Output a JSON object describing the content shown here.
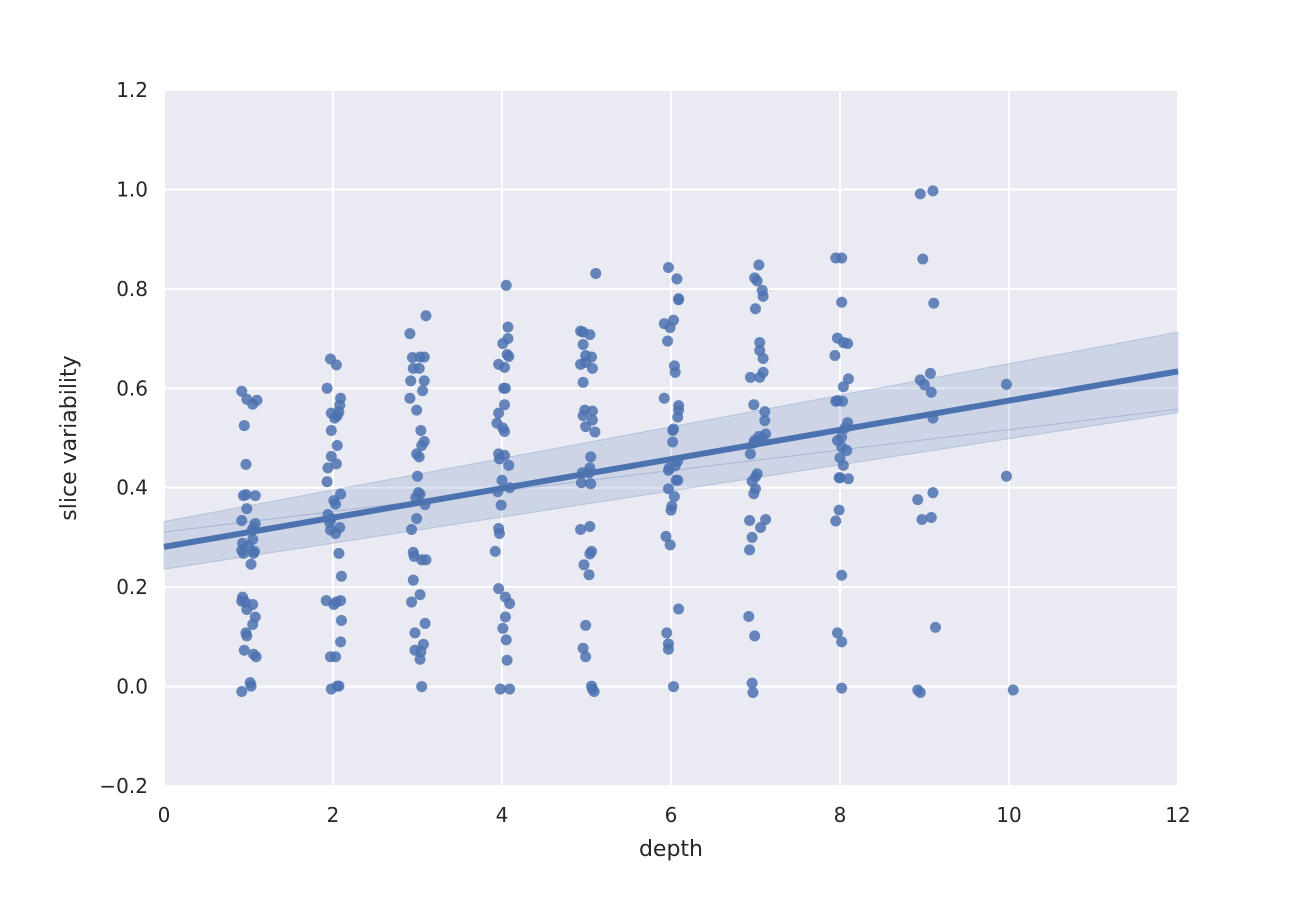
{
  "chart_data": {
    "type": "scatter",
    "title": "",
    "xlabel": "depth",
    "ylabel": "slice variability",
    "xlim": [
      0,
      12
    ],
    "ylim": [
      -0.2,
      1.2
    ],
    "xticks": [
      "0",
      "2",
      "4",
      "6",
      "8",
      "10",
      "12"
    ],
    "yticks": [
      "−0.2",
      "0.0",
      "0.2",
      "0.4",
      "0.6",
      "0.8",
      "1.0",
      "1.2"
    ],
    "grid": true,
    "style": "seaborn-darkgrid",
    "colors": {
      "background": "#eaeaf2",
      "grid": "#ffffff",
      "point": "#4c72b0",
      "line": "#4c72b0",
      "band": "#4c72b0"
    },
    "regression": {
      "x": [
        0,
        12
      ],
      "y": [
        0.281,
        0.634
      ],
      "ci_lower": [
        0.236,
        0.551
      ],
      "ci_mid": [
        0.311,
        0.558
      ],
      "ci_upper": [
        0.332,
        0.713
      ]
    },
    "series": [
      {
        "points": [
          [
            0.92,
            0.594
          ],
          [
            0.98,
            0.578
          ],
          [
            1.05,
            0.568
          ],
          [
            1.1,
            0.576
          ],
          [
            0.95,
            0.525
          ],
          [
            0.97,
            0.447
          ],
          [
            0.94,
            0.384
          ],
          [
            0.97,
            0.386
          ],
          [
            1.08,
            0.384
          ],
          [
            0.98,
            0.358
          ],
          [
            0.92,
            0.334
          ],
          [
            1.08,
            0.328
          ],
          [
            1.06,
            0.32
          ],
          [
            1.04,
            0.314
          ],
          [
            0.93,
            0.288
          ],
          [
            1.0,
            0.283
          ],
          [
            1.05,
            0.296
          ],
          [
            0.92,
            0.274
          ],
          [
            0.94,
            0.268
          ],
          [
            1.07,
            0.272
          ],
          [
            1.06,
            0.268
          ],
          [
            1.03,
            0.246
          ],
          [
            0.93,
            0.18
          ],
          [
            0.92,
            0.172
          ],
          [
            0.96,
            0.17
          ],
          [
            1.05,
            0.165
          ],
          [
            0.98,
            0.155
          ],
          [
            1.08,
            0.14
          ],
          [
            1.05,
            0.125
          ],
          [
            0.97,
            0.108
          ],
          [
            0.98,
            0.102
          ],
          [
            0.95,
            0.073
          ],
          [
            1.06,
            0.065
          ],
          [
            1.09,
            0.06
          ],
          [
            1.02,
            0.008
          ],
          [
            0.92,
            -0.01
          ],
          [
            1.03,
            0.001
          ],
          [
            1.97,
            0.659
          ],
          [
            2.04,
            0.647
          ],
          [
            1.93,
            0.6
          ],
          [
            2.09,
            0.58
          ],
          [
            2.08,
            0.566
          ],
          [
            2.07,
            0.552
          ],
          [
            1.98,
            0.55
          ],
          [
            2.05,
            0.545
          ],
          [
            2.02,
            0.54
          ],
          [
            1.98,
            0.515
          ],
          [
            2.05,
            0.485
          ],
          [
            1.98,
            0.463
          ],
          [
            2.04,
            0.448
          ],
          [
            1.94,
            0.44
          ],
          [
            1.93,
            0.412
          ],
          [
            2.09,
            0.387
          ],
          [
            2.01,
            0.374
          ],
          [
            2.03,
            0.367
          ],
          [
            1.94,
            0.346
          ],
          [
            1.98,
            0.338
          ],
          [
            1.96,
            0.33
          ],
          [
            2.08,
            0.32
          ],
          [
            1.97,
            0.315
          ],
          [
            2.03,
            0.308
          ],
          [
            2.07,
            0.268
          ],
          [
            2.1,
            0.222
          ],
          [
            1.92,
            0.173
          ],
          [
            2.04,
            0.17
          ],
          [
            2.01,
            0.165
          ],
          [
            2.09,
            0.173
          ],
          [
            2.1,
            0.133
          ],
          [
            2.09,
            0.09
          ],
          [
            1.97,
            0.06
          ],
          [
            2.03,
            0.06
          ],
          [
            1.98,
            -0.005
          ],
          [
            2.05,
            0.001
          ],
          [
            2.07,
            0.001
          ],
          [
            2.91,
            0.71
          ],
          [
            3.1,
            0.746
          ],
          [
            2.94,
            0.662
          ],
          [
            3.03,
            0.663
          ],
          [
            3.08,
            0.663
          ],
          [
            2.95,
            0.64
          ],
          [
            3.02,
            0.64
          ],
          [
            2.92,
            0.615
          ],
          [
            3.08,
            0.615
          ],
          [
            3.06,
            0.595
          ],
          [
            2.91,
            0.58
          ],
          [
            2.99,
            0.556
          ],
          [
            3.04,
            0.515
          ],
          [
            3.08,
            0.493
          ],
          [
            3.05,
            0.485
          ],
          [
            2.99,
            0.468
          ],
          [
            3.02,
            0.462
          ],
          [
            3.0,
            0.423
          ],
          [
            3.01,
            0.39
          ],
          [
            3.03,
            0.387
          ],
          [
            2.98,
            0.38
          ],
          [
            3.09,
            0.366
          ],
          [
            2.93,
            0.316
          ],
          [
            2.99,
            0.338
          ],
          [
            2.95,
            0.27
          ],
          [
            2.96,
            0.262
          ],
          [
            3.05,
            0.255
          ],
          [
            3.1,
            0.255
          ],
          [
            2.95,
            0.214
          ],
          [
            3.03,
            0.185
          ],
          [
            2.93,
            0.17
          ],
          [
            2.97,
            0.108
          ],
          [
            3.09,
            0.127
          ],
          [
            3.07,
            0.085
          ],
          [
            2.97,
            0.073
          ],
          [
            3.04,
            0.07
          ],
          [
            3.03,
            0.055
          ],
          [
            3.05,
            0.0
          ],
          [
            4.05,
            0.807
          ],
          [
            4.07,
            0.723
          ],
          [
            4.07,
            0.7
          ],
          [
            4.01,
            0.69
          ],
          [
            4.06,
            0.668
          ],
          [
            4.08,
            0.664
          ],
          [
            3.96,
            0.648
          ],
          [
            4.03,
            0.642
          ],
          [
            4.02,
            0.6
          ],
          [
            4.04,
            0.6
          ],
          [
            4.03,
            0.567
          ],
          [
            3.96,
            0.55
          ],
          [
            3.94,
            0.53
          ],
          [
            4.01,
            0.52
          ],
          [
            4.03,
            0.513
          ],
          [
            3.96,
            0.468
          ],
          [
            4.03,
            0.465
          ],
          [
            3.97,
            0.458
          ],
          [
            4.08,
            0.445
          ],
          [
            4.0,
            0.415
          ],
          [
            4.09,
            0.4
          ],
          [
            3.95,
            0.392
          ],
          [
            3.99,
            0.365
          ],
          [
            3.96,
            0.318
          ],
          [
            3.97,
            0.308
          ],
          [
            3.92,
            0.272
          ],
          [
            3.96,
            0.197
          ],
          [
            4.04,
            0.18
          ],
          [
            4.09,
            0.167
          ],
          [
            4.04,
            0.14
          ],
          [
            4.01,
            0.117
          ],
          [
            4.05,
            0.094
          ],
          [
            4.06,
            0.053
          ],
          [
            3.98,
            -0.005
          ],
          [
            4.09,
            -0.005
          ],
          [
            4.93,
            0.715
          ],
          [
            4.96,
            0.713
          ],
          [
            5.04,
            0.708
          ],
          [
            4.96,
            0.688
          ],
          [
            4.99,
            0.666
          ],
          [
            5.06,
            0.663
          ],
          [
            4.93,
            0.648
          ],
          [
            4.99,
            0.652
          ],
          [
            5.07,
            0.64
          ],
          [
            4.96,
            0.612
          ],
          [
            4.98,
            0.556
          ],
          [
            5.07,
            0.554
          ],
          [
            4.96,
            0.545
          ],
          [
            5.07,
            0.536
          ],
          [
            4.99,
            0.523
          ],
          [
            5.1,
            0.512
          ],
          [
            5.05,
            0.462
          ],
          [
            5.04,
            0.44
          ],
          [
            5.03,
            0.43
          ],
          [
            4.95,
            0.43
          ],
          [
            4.94,
            0.41
          ],
          [
            5.05,
            0.408
          ],
          [
            4.93,
            0.316
          ],
          [
            5.04,
            0.322
          ],
          [
            5.06,
            0.272
          ],
          [
            5.04,
            0.267
          ],
          [
            4.97,
            0.245
          ],
          [
            5.03,
            0.225
          ],
          [
            5.11,
            0.831
          ],
          [
            4.99,
            0.123
          ],
          [
            4.96,
            0.077
          ],
          [
            4.99,
            0.06
          ],
          [
            5.06,
            0.001
          ],
          [
            5.07,
            -0.005
          ],
          [
            5.09,
            -0.01
          ],
          [
            5.97,
            0.843
          ],
          [
            6.07,
            0.82
          ],
          [
            6.09,
            0.78
          ],
          [
            6.09,
            0.778
          ],
          [
            6.03,
            0.737
          ],
          [
            5.92,
            0.73
          ],
          [
            5.99,
            0.722
          ],
          [
            5.96,
            0.695
          ],
          [
            6.04,
            0.645
          ],
          [
            6.05,
            0.632
          ],
          [
            5.92,
            0.58
          ],
          [
            6.09,
            0.565
          ],
          [
            6.09,
            0.556
          ],
          [
            6.08,
            0.542
          ],
          [
            6.03,
            0.518
          ],
          [
            6.02,
            0.515
          ],
          [
            6.02,
            0.492
          ],
          [
            6.08,
            0.454
          ],
          [
            5.98,
            0.44
          ],
          [
            6.05,
            0.444
          ],
          [
            5.97,
            0.435
          ],
          [
            6.06,
            0.415
          ],
          [
            6.08,
            0.415
          ],
          [
            5.97,
            0.398
          ],
          [
            6.04,
            0.382
          ],
          [
            6.01,
            0.363
          ],
          [
            6.0,
            0.355
          ],
          [
            5.94,
            0.302
          ],
          [
            5.99,
            0.285
          ],
          [
            6.09,
            0.156
          ],
          [
            5.95,
            0.108
          ],
          [
            5.97,
            0.086
          ],
          [
            5.97,
            0.075
          ],
          [
            6.03,
            0.0
          ],
          [
            6.99,
            0.822
          ],
          [
            7.02,
            0.816
          ],
          [
            7.04,
            0.848
          ],
          [
            7.08,
            0.797
          ],
          [
            7.09,
            0.785
          ],
          [
            7.0,
            0.76
          ],
          [
            7.05,
            0.692
          ],
          [
            7.05,
            0.676
          ],
          [
            7.09,
            0.66
          ],
          [
            7.09,
            0.632
          ],
          [
            6.94,
            0.622
          ],
          [
            7.05,
            0.622
          ],
          [
            6.98,
            0.567
          ],
          [
            7.11,
            0.553
          ],
          [
            7.11,
            0.535
          ],
          [
            7.12,
            0.508
          ],
          [
            7.04,
            0.503
          ],
          [
            7.08,
            0.5
          ],
          [
            6.99,
            0.495
          ],
          [
            6.98,
            0.49
          ],
          [
            6.94,
            0.468
          ],
          [
            7.02,
            0.428
          ],
          [
            7.0,
            0.422
          ],
          [
            6.96,
            0.413
          ],
          [
            7.0,
            0.398
          ],
          [
            6.98,
            0.388
          ],
          [
            6.93,
            0.334
          ],
          [
            7.12,
            0.336
          ],
          [
            7.06,
            0.32
          ],
          [
            6.96,
            0.3
          ],
          [
            6.93,
            0.275
          ],
          [
            6.92,
            0.141
          ],
          [
            6.99,
            0.102
          ],
          [
            6.96,
            0.007
          ],
          [
            6.97,
            -0.012
          ],
          [
            7.95,
            0.862
          ],
          [
            8.02,
            0.862
          ],
          [
            8.02,
            0.773
          ],
          [
            7.97,
            0.701
          ],
          [
            8.04,
            0.692
          ],
          [
            8.09,
            0.69
          ],
          [
            7.94,
            0.666
          ],
          [
            8.1,
            0.619
          ],
          [
            8.04,
            0.603
          ],
          [
            7.95,
            0.574
          ],
          [
            7.97,
            0.575
          ],
          [
            8.03,
            0.574
          ],
          [
            8.09,
            0.531
          ],
          [
            8.06,
            0.52
          ],
          [
            7.97,
            0.495
          ],
          [
            8.02,
            0.502
          ],
          [
            8.02,
            0.482
          ],
          [
            8.08,
            0.475
          ],
          [
            8.0,
            0.46
          ],
          [
            8.04,
            0.445
          ],
          [
            8.0,
            0.42
          ],
          [
            7.99,
            0.42
          ],
          [
            8.1,
            0.418
          ],
          [
            7.99,
            0.355
          ],
          [
            7.95,
            0.333
          ],
          [
            8.02,
            0.224
          ],
          [
            7.97,
            0.108
          ],
          [
            8.02,
            0.09
          ],
          [
            8.02,
            -0.003
          ],
          [
            8.95,
            0.991
          ],
          [
            9.1,
            0.997
          ],
          [
            8.98,
            0.86
          ],
          [
            9.11,
            0.771
          ],
          [
            8.95,
            0.617
          ],
          [
            9.07,
            0.63
          ],
          [
            9.0,
            0.607
          ],
          [
            9.08,
            0.592
          ],
          [
            9.1,
            0.54
          ],
          [
            9.1,
            0.39
          ],
          [
            8.92,
            0.376
          ],
          [
            8.97,
            0.336
          ],
          [
            9.08,
            0.34
          ],
          [
            9.13,
            0.119
          ],
          [
            8.92,
            -0.007
          ],
          [
            8.95,
            -0.012
          ],
          [
            9.97,
            0.608
          ],
          [
            9.97,
            0.423
          ],
          [
            10.05,
            -0.007
          ]
        ]
      }
    ]
  }
}
